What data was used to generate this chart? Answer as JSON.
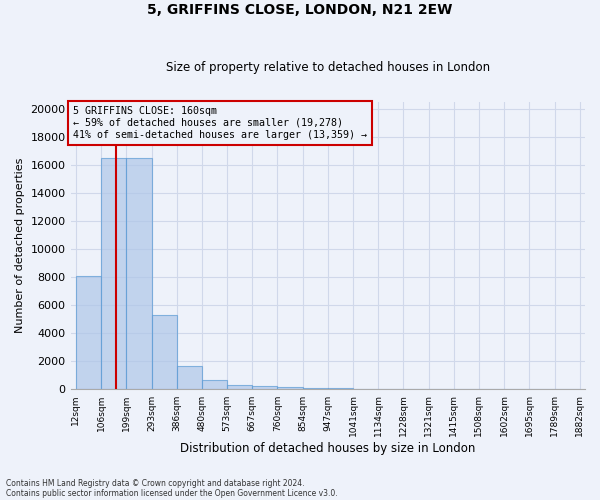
{
  "title1": "5, GRIFFINS CLOSE, LONDON, N21 2EW",
  "title2": "Size of property relative to detached houses in London",
  "xlabel": "Distribution of detached houses by size in London",
  "ylabel": "Number of detached properties",
  "bar_heights": [
    8100,
    16500,
    16500,
    5300,
    1700,
    650,
    350,
    250,
    150,
    100,
    80,
    60,
    50,
    40,
    30,
    25,
    20,
    15,
    10,
    8
  ],
  "bin_edges": [
    12,
    106,
    199,
    293,
    386,
    480,
    573,
    667,
    760,
    854,
    947,
    1041,
    1134,
    1228,
    1321,
    1415,
    1508,
    1602,
    1695,
    1789,
    1882
  ],
  "bar_color": "#aec6e8",
  "bar_edge_color": "#5b9bd5",
  "bar_alpha": 0.7,
  "property_size": 160,
  "red_line_color": "#cc0000",
  "annotation_text": "5 GRIFFINS CLOSE: 160sqm\n← 59% of detached houses are smaller (19,278)\n41% of semi-detached houses are larger (13,359) →",
  "annotation_box_color": "#cc0000",
  "ylim": [
    0,
    20500
  ],
  "yticks": [
    0,
    2000,
    4000,
    6000,
    8000,
    10000,
    12000,
    14000,
    16000,
    18000,
    20000
  ],
  "footnote1": "Contains HM Land Registry data © Crown copyright and database right 2024.",
  "footnote2": "Contains public sector information licensed under the Open Government Licence v3.0.",
  "background_color": "#eef2fa",
  "grid_color": "#d0d8ea"
}
